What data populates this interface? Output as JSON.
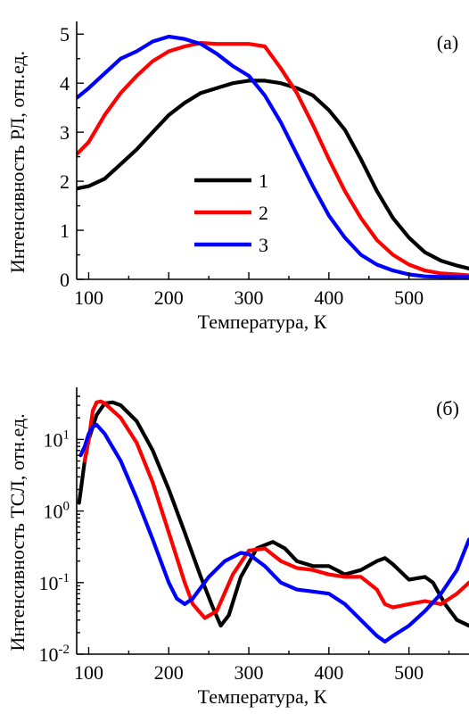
{
  "colors": {
    "s1": "#000000",
    "s2": "#ff0000",
    "s3": "#0000ff"
  },
  "chart_data": [
    {
      "type": "line",
      "panel_label": "(a)",
      "xlabel": "Температура, К",
      "ylabel": "Интенсивность РЛ, отн.ед.",
      "xlim": [
        85,
        575
      ],
      "ylim": [
        0,
        5.15
      ],
      "xticks": [
        100,
        200,
        300,
        400,
        500
      ],
      "yticks": [
        0,
        1,
        2,
        3,
        4,
        5
      ],
      "xtick_labels": [
        "100",
        "200",
        "300",
        "400",
        "500"
      ],
      "ytick_labels": [
        "0",
        "1",
        "2",
        "3",
        "4",
        "5"
      ],
      "legend_position": "center",
      "series": [
        {
          "name": "1",
          "color": "#000000",
          "x": [
            85,
            100,
            120,
            140,
            160,
            180,
            200,
            220,
            240,
            260,
            280,
            300,
            320,
            340,
            360,
            380,
            400,
            420,
            440,
            460,
            480,
            500,
            520,
            540,
            560,
            575
          ],
          "y": [
            1.85,
            1.9,
            2.05,
            2.35,
            2.65,
            3.0,
            3.35,
            3.6,
            3.8,
            3.9,
            4.0,
            4.05,
            4.05,
            4.0,
            3.9,
            3.75,
            3.45,
            3.05,
            2.45,
            1.8,
            1.25,
            0.85,
            0.55,
            0.38,
            0.28,
            0.22
          ]
        },
        {
          "name": "2",
          "color": "#ff0000",
          "x": [
            85,
            100,
            120,
            140,
            160,
            180,
            200,
            220,
            240,
            260,
            280,
            300,
            320,
            340,
            360,
            380,
            400,
            420,
            440,
            460,
            480,
            500,
            520,
            540,
            560,
            575
          ],
          "y": [
            2.55,
            2.8,
            3.35,
            3.8,
            4.15,
            4.45,
            4.65,
            4.75,
            4.82,
            4.8,
            4.8,
            4.8,
            4.75,
            4.3,
            3.8,
            3.15,
            2.45,
            1.8,
            1.25,
            0.8,
            0.5,
            0.3,
            0.18,
            0.12,
            0.1,
            0.08
          ]
        },
        {
          "name": "3",
          "color": "#0000ff",
          "x": [
            85,
            100,
            120,
            140,
            160,
            180,
            200,
            220,
            240,
            260,
            280,
            300,
            320,
            340,
            360,
            380,
            400,
            420,
            440,
            460,
            480,
            500,
            520,
            540,
            560,
            575
          ],
          "y": [
            3.7,
            3.9,
            4.2,
            4.5,
            4.65,
            4.85,
            4.95,
            4.9,
            4.8,
            4.6,
            4.35,
            4.15,
            3.75,
            3.2,
            2.55,
            1.9,
            1.3,
            0.85,
            0.5,
            0.3,
            0.18,
            0.1,
            0.06,
            0.05,
            0.05,
            0.05
          ]
        }
      ]
    },
    {
      "type": "line",
      "panel_label": "(б)",
      "xlabel": "Температура, К",
      "ylabel": "Интенсивность ТСЛ, отн.ед.",
      "xlim": [
        85,
        575
      ],
      "ylim": [
        0.01,
        45
      ],
      "yscale": "log",
      "xticks": [
        100,
        200,
        300,
        400,
        500
      ],
      "xtick_labels": [
        "100",
        "200",
        "300",
        "400",
        "500"
      ],
      "yticks": [
        0.01,
        0.1,
        1,
        10
      ],
      "ytick_labels": [
        {
          "base": "10",
          "exp": "-2"
        },
        {
          "base": "10",
          "exp": "-1"
        },
        {
          "base": "10",
          "exp": "0"
        },
        {
          "base": "10",
          "exp": "1"
        }
      ],
      "series": [
        {
          "name": "1",
          "color": "#000000",
          "x": [
            88,
            95,
            100,
            110,
            120,
            130,
            140,
            160,
            180,
            200,
            220,
            240,
            255,
            265,
            275,
            290,
            310,
            330,
            345,
            360,
            380,
            400,
            420,
            440,
            460,
            470,
            480,
            500,
            520,
            530,
            545,
            560,
            575
          ],
          "y": [
            1.3,
            5,
            10,
            22,
            32,
            33,
            30,
            18,
            7,
            2,
            0.5,
            0.12,
            0.045,
            0.025,
            0.035,
            0.12,
            0.3,
            0.37,
            0.3,
            0.2,
            0.17,
            0.17,
            0.13,
            0.15,
            0.2,
            0.22,
            0.18,
            0.11,
            0.12,
            0.1,
            0.05,
            0.03,
            0.025
          ]
        },
        {
          "name": "2",
          "color": "#ff0000",
          "x": [
            95,
            100,
            105,
            110,
            115,
            120,
            140,
            160,
            180,
            200,
            220,
            230,
            245,
            260,
            280,
            300,
            320,
            340,
            360,
            380,
            400,
            420,
            440,
            460,
            470,
            480,
            500,
            520,
            540,
            560,
            575
          ],
          "y": [
            5,
            10,
            25,
            33,
            34,
            32,
            20,
            9,
            2.5,
            0.5,
            0.1,
            0.05,
            0.032,
            0.04,
            0.13,
            0.28,
            0.3,
            0.2,
            0.16,
            0.15,
            0.13,
            0.12,
            0.12,
            0.08,
            0.05,
            0.045,
            0.05,
            0.055,
            0.05,
            0.07,
            0.1
          ]
        },
        {
          "name": "3",
          "color": "#0000ff",
          "x": [
            90,
            95,
            100,
            105,
            110,
            120,
            140,
            160,
            180,
            200,
            210,
            220,
            230,
            250,
            270,
            290,
            300,
            320,
            340,
            360,
            380,
            400,
            420,
            440,
            460,
            470,
            480,
            500,
            520,
            540,
            560,
            575
          ],
          "y": [
            6,
            8,
            12,
            15,
            16,
            12,
            5,
            1.5,
            0.4,
            0.1,
            0.06,
            0.05,
            0.06,
            0.12,
            0.2,
            0.26,
            0.25,
            0.17,
            0.1,
            0.08,
            0.075,
            0.07,
            0.05,
            0.03,
            0.018,
            0.015,
            0.018,
            0.025,
            0.04,
            0.07,
            0.15,
            0.4
          ]
        }
      ]
    }
  ]
}
